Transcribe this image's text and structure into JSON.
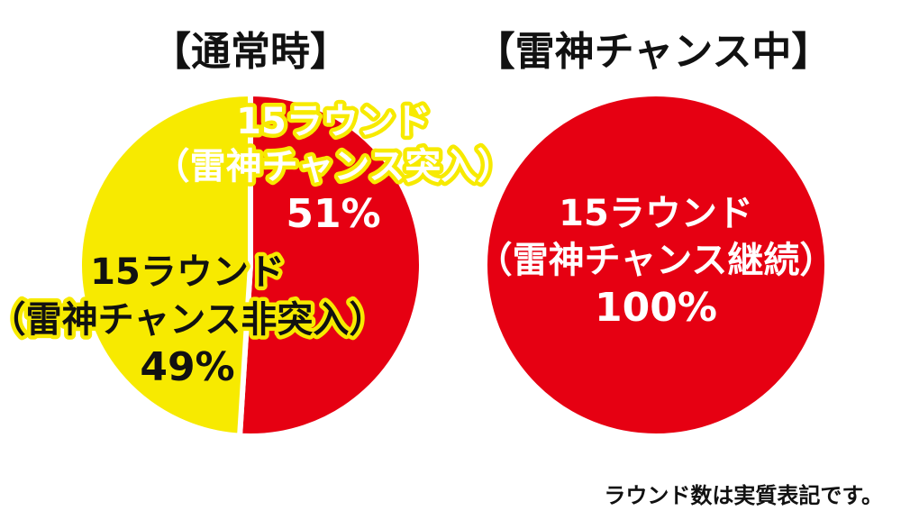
{
  "colors": {
    "red": "#e60012",
    "yellow": "#f7ea00",
    "white": "#ffffff",
    "text_dark": "#111111"
  },
  "chart_data": [
    {
      "type": "pie",
      "title": "【通常時】",
      "slices": [
        {
          "label_lines": [
            "15ラウンド",
            "（雷神チャンス突入）",
            "51%"
          ],
          "value": 51,
          "color": "#e60012"
        },
        {
          "label_lines": [
            "15ラウンド",
            "（雷神チャンス非突入）",
            "49%"
          ],
          "value": 49,
          "color": "#f7ea00"
        }
      ]
    },
    {
      "type": "pie",
      "title": "【雷神チャンス中】",
      "slices": [
        {
          "label_lines": [
            "15ラウンド",
            "（雷神チャンス継続）",
            "100%"
          ],
          "value": 100,
          "color": "#e60012"
        }
      ]
    }
  ],
  "footnote": "ラウンド数は実質表記です。"
}
